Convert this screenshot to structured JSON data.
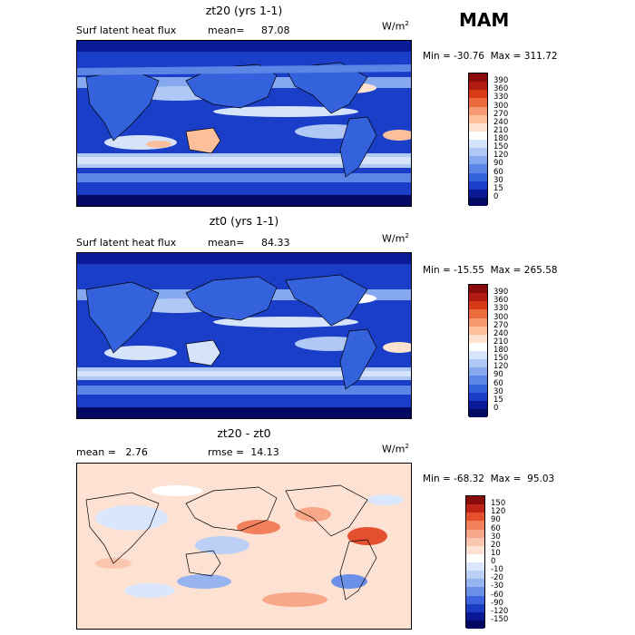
{
  "season": "MAM",
  "units_base": "W/m",
  "units_exp": "2",
  "panels": [
    {
      "title": "zt20 (yrs 1-1)",
      "left_text": "Surf latent heat flux",
      "mean_label": "mean=",
      "mean_value": "87.08",
      "minmax": "Min = -30.76  Max = 311.72",
      "colorbar_labels": [
        "390",
        "360",
        "330",
        "300",
        "270",
        "240",
        "210",
        "180",
        "150",
        "120",
        "90",
        "60",
        "30",
        "15",
        "0"
      ]
    },
    {
      "title": "zt0 (yrs 1-1)",
      "left_text": "Surf latent heat flux",
      "mean_label": "mean=",
      "mean_value": "84.33",
      "minmax": "Min = -15.55  Max = 265.58",
      "colorbar_labels": [
        "390",
        "360",
        "330",
        "300",
        "270",
        "240",
        "210",
        "180",
        "150",
        "120",
        "90",
        "60",
        "30",
        "15",
        "0"
      ]
    },
    {
      "title": "zt20 - zt0",
      "left_text": "mean =   2.76",
      "rmse_text": "rmse =  14.13",
      "minmax": "Min = -68.32  Max =  95.03",
      "colorbar_labels": [
        "150",
        "120",
        "90",
        "60",
        "30",
        "20",
        "10",
        "0",
        "-10",
        "-20",
        "-30",
        "-60",
        "-90",
        "-120",
        "-150"
      ]
    }
  ],
  "colors": {
    "abs_scale": [
      "#8b0a0a",
      "#b01a10",
      "#d83a18",
      "#ec6a3c",
      "#f59a70",
      "#fbbf9c",
      "#fde3cf",
      "#ffffff",
      "#d6e4fb",
      "#b0c8f5",
      "#86a8ee",
      "#5c86e6",
      "#3462dc",
      "#1a3ec8",
      "#0a1a96",
      "#040a64"
    ],
    "diff_scale": [
      "#8b0a0a",
      "#c02416",
      "#e4502e",
      "#f2805c",
      "#f8a888",
      "#fbc6ae",
      "#fde2d4",
      "#ffffff",
      "#dae6fb",
      "#bcd0f6",
      "#98b4f0",
      "#6c90e8",
      "#3c64dc",
      "#1c3cc4",
      "#0a1896",
      "#040864"
    ]
  }
}
